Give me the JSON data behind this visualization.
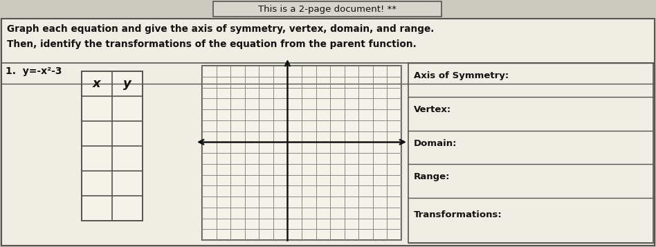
{
  "bg_color": "#ccc9c0",
  "cell_bg": "#e8e5dc",
  "title_box_text": "This is a 2-page document! **",
  "title_box_bg": "#d8d5cc",
  "instruction_line1": "Graph each equation and give the axis of symmetry, vertex, domain, and range.",
  "instruction_line2": "Then, identify the transformations of the equation from the parent function.",
  "problem_label": "1.",
  "equation_display": "y=-x²-3",
  "table_header_x": "x",
  "table_header_y": "y",
  "table_data_rows": 5,
  "right_panel_labels": [
    "Axis of Symmetry:",
    "Vertex:",
    "Domain:",
    "Range:",
    "Transformations:"
  ],
  "grid_color": "#888880",
  "grid_cols": 14,
  "grid_rows": 16,
  "axis_color": "#111111",
  "text_color": "#111111",
  "border_color": "#555550",
  "white_bg": "#f0ede4"
}
